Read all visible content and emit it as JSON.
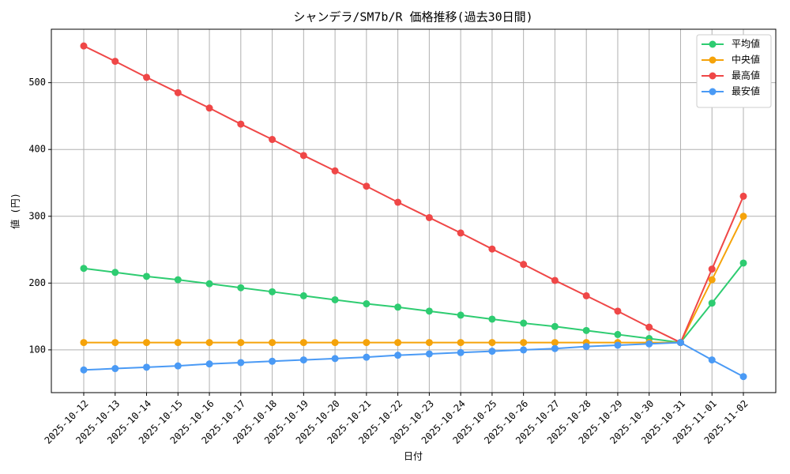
{
  "chart_data": {
    "type": "line",
    "title": "シャンデラ/SM7b/R 価格推移(過去30日間)",
    "x_label": "日付",
    "y_label": "値 (円)",
    "categories": [
      "2025-10-12",
      "2025-10-13",
      "2025-10-14",
      "2025-10-15",
      "2025-10-16",
      "2025-10-17",
      "2025-10-18",
      "2025-10-19",
      "2025-10-20",
      "2025-10-21",
      "2025-10-22",
      "2025-10-23",
      "2025-10-24",
      "2025-10-25",
      "2025-10-26",
      "2025-10-27",
      "2025-10-28",
      "2025-10-29",
      "2025-10-30",
      "2025-10-31",
      "2025-11-01",
      "2025-11-02"
    ],
    "series": [
      {
        "name": "平均値",
        "color": "#2ecc71",
        "values": [
          222,
          216,
          210,
          205,
          199,
          193,
          187,
          181,
          175,
          169,
          164,
          158,
          152,
          146,
          140,
          135,
          129,
          123,
          117,
          111,
          170,
          230
        ]
      },
      {
        "name": "中央値",
        "color": "#f5a30a",
        "values": [
          111,
          111,
          111,
          111,
          111,
          111,
          111,
          111,
          111,
          111,
          111,
          111,
          111,
          111,
          111,
          111,
          111,
          111,
          111,
          111,
          205,
          300
        ]
      },
      {
        "name": "最高値",
        "color": "#ef4747",
        "values": [
          555,
          532,
          508,
          485,
          462,
          438,
          415,
          391,
          368,
          345,
          321,
          298,
          275,
          251,
          228,
          204,
          181,
          158,
          134,
          111,
          221,
          330
        ]
      },
      {
        "name": "最安値",
        "color": "#4a9af5",
        "values": [
          70,
          72,
          74,
          76,
          79,
          81,
          83,
          85,
          87,
          89,
          92,
          94,
          96,
          98,
          100,
          102,
          105,
          107,
          109,
          111,
          85,
          60
        ]
      }
    ],
    "ylim": [
      36,
      580
    ],
    "yticks": [
      100,
      200,
      300,
      400,
      500
    ],
    "grid": true,
    "legend": "upper-right"
  }
}
